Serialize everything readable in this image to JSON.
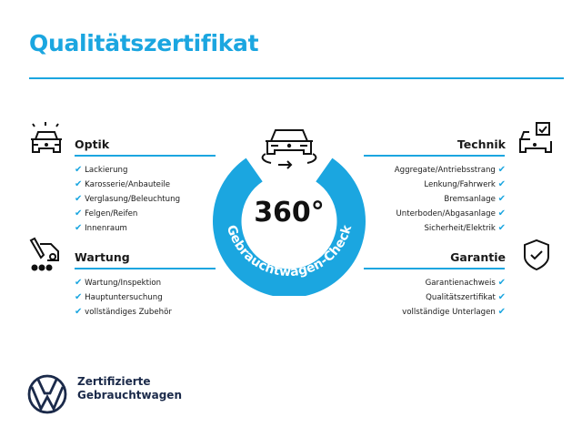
{
  "title": "Qualitätszertifikat",
  "center": {
    "big_text": "360°",
    "ring_text": "Gebrauchtwagen-Check",
    "accent": "#1ba6e0"
  },
  "sections": {
    "optik": {
      "heading": "Optik",
      "icon": "car-lights-icon",
      "items": [
        "Lackierung",
        "Karosserie/Anbauteile",
        "Verglasung/Beleuchtung",
        "Felgen/Reifen",
        "Innenraum"
      ]
    },
    "wartung": {
      "heading": "Wartung",
      "icon": "service-tools-icon",
      "items": [
        "Wartung/Inspektion",
        "Hauptuntersuchung",
        "vollständiges Zubehör"
      ]
    },
    "technik": {
      "heading": "Technik",
      "icon": "car-checklist-icon",
      "items": [
        "Aggregate/Antriebsstrang",
        "Lenkung/Fahrwerk",
        "Bremsanlage",
        "Unterboden/Abgasanlage",
        "Sicherheit/Elektrik"
      ]
    },
    "garantie": {
      "heading": "Garantie",
      "icon": "shield-check-icon",
      "items": [
        "Garantienachweis",
        "Qualitätszertifikat",
        "vollständige Unterlagen"
      ]
    }
  },
  "check_mark": "✔",
  "footer": {
    "line1": "Zertifizierte",
    "line2": "Gebrauchtwagen",
    "logo": "vw-logo"
  }
}
